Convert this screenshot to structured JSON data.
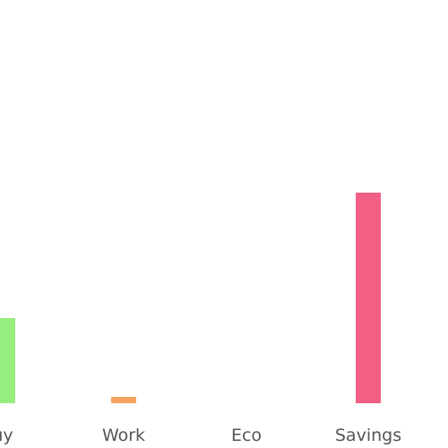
{
  "chart_data": {
    "type": "bar",
    "title": "",
    "xlabel": "",
    "ylabel": "",
    "categories": [
      "uy",
      "Work",
      "Eco",
      "Savings"
    ],
    "values": [
      95,
      7,
      0,
      235
    ],
    "colors": [
      "#95ee7e",
      "#f5a35c",
      "#c3c3c3",
      "#f25f84"
    ],
    "ylim": [
      0,
      450
    ],
    "grid": false,
    "legend": "none"
  }
}
